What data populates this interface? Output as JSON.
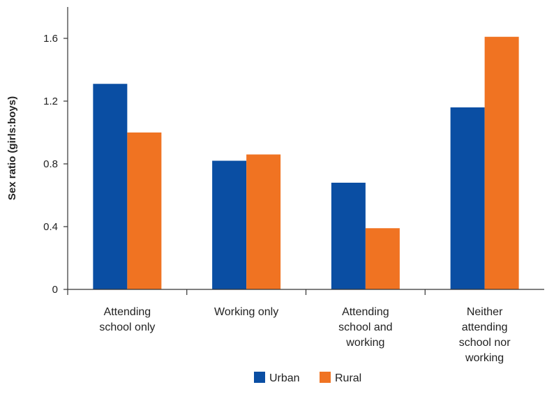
{
  "chart_data": {
    "type": "bar",
    "title": "",
    "ylabel": "Sex ratio (girls:boys)",
    "xlabel": "",
    "ylim": [
      0,
      1.8
    ],
    "yticks": [
      {
        "value": 0,
        "label": "0"
      },
      {
        "value": 0.4,
        "label": "0.4"
      },
      {
        "value": 0.8,
        "label": "0.8"
      },
      {
        "value": 1.2,
        "label": "1.2"
      },
      {
        "value": 1.6,
        "label": "1.6"
      }
    ],
    "categories": [
      [
        "Attending",
        "school only"
      ],
      [
        "Working only"
      ],
      [
        "Attending",
        "school and",
        "working"
      ],
      [
        "Neither",
        "attending",
        "school nor",
        "working"
      ]
    ],
    "series": [
      {
        "name": "Urban",
        "color": "#0a4ea3",
        "values": [
          1.31,
          0.82,
          0.68,
          1.16
        ]
      },
      {
        "name": "Rural",
        "color": "#f07322",
        "values": [
          1.0,
          0.86,
          0.39,
          1.61
        ]
      }
    ],
    "legend_position": "bottom-center",
    "grid": false
  }
}
